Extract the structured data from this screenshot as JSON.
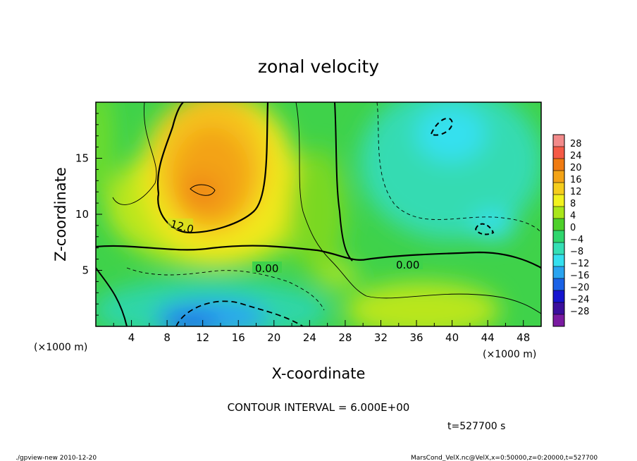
{
  "chart_data": {
    "type": "heatmap",
    "title": "zonal velocity",
    "xlabel": "X-coordinate",
    "ylabel": "Z-coordinate",
    "x_unit_left": "(×1000 m)",
    "x_unit_right": "(×1000 m)",
    "xlim": [
      0,
      50
    ],
    "ylim": [
      0,
      20
    ],
    "x_ticks": [
      4,
      8,
      12,
      16,
      20,
      24,
      28,
      32,
      36,
      40,
      44,
      48
    ],
    "y_ticks": [
      5,
      10,
      15
    ],
    "colorbar": {
      "levels": [
        28,
        24,
        20,
        16,
        12,
        8,
        4,
        0,
        -4,
        -8,
        -12,
        -16,
        -20,
        -24,
        -28
      ],
      "colors": [
        "#f28a8a",
        "#f55a46",
        "#f07b12",
        "#f3a316",
        "#f5cd1c",
        "#f2f21e",
        "#a9e61a",
        "#4ed02a",
        "#2fd66d",
        "#35dfb5",
        "#35e0ef",
        "#2aa4f0",
        "#1a62e6",
        "#1515cf",
        "#3b0f9c",
        "#7a1aa1"
      ]
    },
    "contour_labels": [
      "12.0",
      "0.00",
      "0.00"
    ],
    "footer_interval": "CONTOUR INTERVAL = 6.000E+00",
    "time": "t=527700 s",
    "footer_left": "./gpview-new  2010-12-20",
    "footer_right": "MarsCond_VelX.nc@VelX,x=0:50000,z=0:20000,t=527700"
  }
}
